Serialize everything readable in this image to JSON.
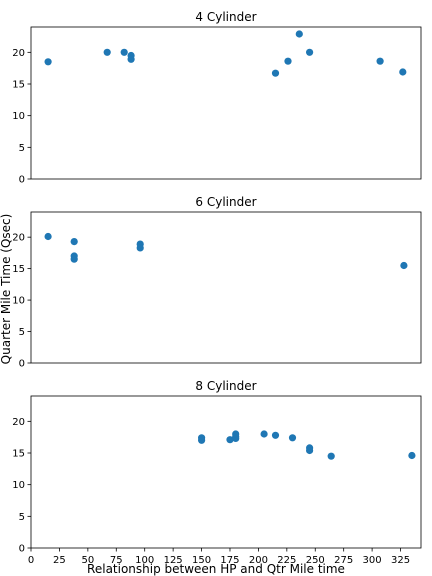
{
  "figure": {
    "ylabel": "Quarter Mile Time (Qsec)",
    "xlabel": "Relationship between HP and Qtr Mile time"
  },
  "chart_data": [
    {
      "type": "scatter",
      "title": "4 Cylinder",
      "color": "#1f77b4",
      "xlim": [
        0,
        343
      ],
      "ylim": [
        0,
        24
      ],
      "xticks": [
        0,
        25,
        50,
        75,
        100,
        125,
        150,
        175,
        200,
        225,
        250,
        275,
        300,
        325
      ],
      "yticks": [
        0,
        5,
        10,
        15,
        20
      ],
      "show_xtick_labels": false,
      "x": [
        15,
        67,
        82,
        88,
        88,
        215,
        226,
        236,
        245,
        307,
        327
      ],
      "y": [
        18.5,
        20.0,
        20.0,
        19.5,
        18.9,
        16.7,
        18.6,
        22.9,
        20.0,
        18.6,
        16.9
      ]
    },
    {
      "type": "scatter",
      "title": "6 Cylinder",
      "color": "#1f77b4",
      "xlim": [
        0,
        343
      ],
      "ylim": [
        0,
        24
      ],
      "xticks": [
        0,
        25,
        50,
        75,
        100,
        125,
        150,
        175,
        200,
        225,
        250,
        275,
        300,
        325
      ],
      "yticks": [
        0,
        5,
        10,
        15,
        20
      ],
      "show_xtick_labels": false,
      "x": [
        15,
        38,
        38,
        38,
        96,
        96,
        328
      ],
      "y": [
        20.1,
        19.3,
        17.0,
        16.5,
        18.9,
        18.3,
        15.5
      ]
    },
    {
      "type": "scatter",
      "title": "8 Cylinder",
      "color": "#1f77b4",
      "xlim": [
        0,
        343
      ],
      "ylim": [
        0,
        24
      ],
      "xticks": [
        0,
        25,
        50,
        75,
        100,
        125,
        150,
        175,
        200,
        225,
        250,
        275,
        300,
        325
      ],
      "yticks": [
        0,
        5,
        10,
        15,
        20
      ],
      "show_xtick_labels": true,
      "x": [
        150,
        150,
        175,
        180,
        180,
        180,
        205,
        215,
        230,
        245,
        245,
        264,
        335
      ],
      "y": [
        17.4,
        17.0,
        17.1,
        17.3,
        17.6,
        18.0,
        18.0,
        17.8,
        17.4,
        15.8,
        15.4,
        14.5,
        14.6
      ]
    }
  ]
}
